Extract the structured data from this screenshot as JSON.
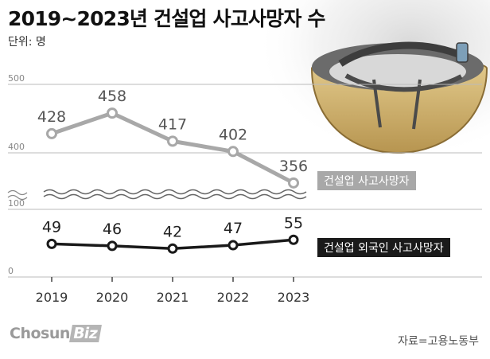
{
  "title": "2019~2023년 건설업 사고사망자 수",
  "unit": "단위: 명",
  "source": "자료=고용노동부",
  "logo": {
    "main": "Chosun",
    "accent": "Biz"
  },
  "colors": {
    "series_construction": "#a8a8a8",
    "series_foreign": "#1a1a1a",
    "grid": "#bbbbbb",
    "axis_text": "#888888",
    "value_text": "#555555"
  },
  "chart_data": {
    "type": "line",
    "title": "2019~2023년 건설업 사고사망자 수",
    "ylabel": "단위: 명",
    "xlabel": "",
    "categories": [
      "2019",
      "2020",
      "2021",
      "2022",
      "2023"
    ],
    "axis_break": true,
    "y_ticks_upper": [
      "500",
      "400"
    ],
    "y_ticks_lower": [
      "100",
      "0"
    ],
    "ylim_upper": [
      300,
      500
    ],
    "ylim_lower": [
      0,
      100
    ],
    "grid": "horizontal",
    "legend": "inline-right",
    "series": [
      {
        "name": "건설업 사고사망자",
        "values": [
          428,
          458,
          417,
          402,
          356
        ],
        "labels": [
          "428",
          "458",
          "417",
          "402",
          "356"
        ]
      },
      {
        "name": "건설업 외국인 사고사망자",
        "values": [
          49,
          46,
          42,
          47,
          55
        ],
        "labels": [
          "49",
          "46",
          "42",
          "47",
          "55"
        ]
      }
    ]
  }
}
